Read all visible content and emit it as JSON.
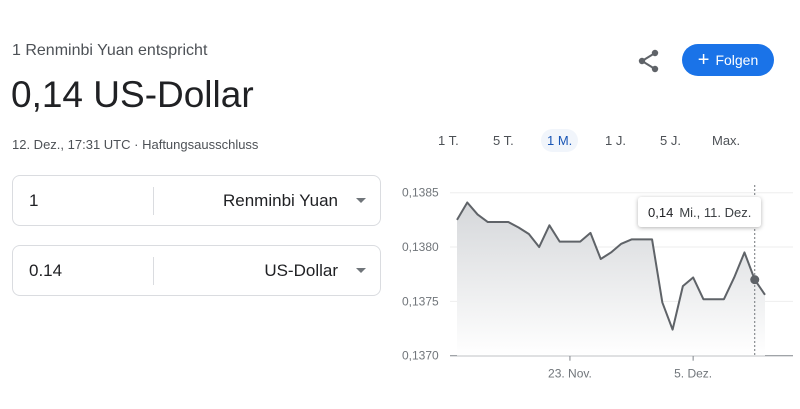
{
  "header": {
    "subtitle": "1 Renminbi Yuan entspricht",
    "result": "0,14 US-Dollar",
    "timestamp": "12. Dez., 17:31 UTC",
    "separator": "·",
    "disclaimer": "Haftungsausschluss"
  },
  "actions": {
    "share_icon": "share-icon",
    "follow_label": "Folgen",
    "follow_color": "#1a73e8"
  },
  "converter": [
    {
      "value": "1",
      "currency": "Renminbi Yuan"
    },
    {
      "value": "0.14",
      "currency": "US-Dollar"
    }
  ],
  "ranges": [
    {
      "label": "1 T."
    },
    {
      "label": "5 T."
    },
    {
      "label": "1 M.",
      "active": true
    },
    {
      "label": "1 J."
    },
    {
      "label": "5 J."
    },
    {
      "label": "Max."
    }
  ],
  "tooltip": {
    "value": "0,14",
    "date": "Mi., 11. Dez."
  },
  "chart_data": {
    "type": "area",
    "x": [
      "12.11",
      "13.11",
      "14.11",
      "15.11",
      "16.11",
      "17.11",
      "18.11",
      "19.11",
      "20.11",
      "21.11",
      "22.11",
      "23.11",
      "24.11",
      "25.11",
      "26.11",
      "27.11",
      "28.11",
      "29.11",
      "30.11",
      "01.12",
      "02.12",
      "03.12",
      "04.12",
      "05.12",
      "06.12",
      "07.12",
      "08.12",
      "09.12",
      "10.12",
      "11.12",
      "12.12"
    ],
    "values": [
      0.13825,
      0.13841,
      0.1383,
      0.13823,
      0.13823,
      0.13823,
      0.13818,
      0.13812,
      0.138,
      0.1382,
      0.13805,
      0.13805,
      0.13805,
      0.13813,
      0.13789,
      0.13795,
      0.13803,
      0.13807,
      0.13807,
      0.13807,
      0.13749,
      0.13724,
      0.13764,
      0.13772,
      0.13752,
      0.13752,
      0.13752,
      0.13772,
      0.13795,
      0.1377,
      0.13756
    ],
    "ylim": [
      0.137,
      0.1385
    ],
    "yticks": [
      "0,1385",
      "0,1380",
      "0,1375",
      "0,1370"
    ],
    "xticks": [
      {
        "label": "23. Nov.",
        "index": 11
      },
      {
        "label": "5. Dez.",
        "index": 23
      }
    ],
    "hover_index": 29,
    "grid": true,
    "line_color": "#5f6368"
  }
}
